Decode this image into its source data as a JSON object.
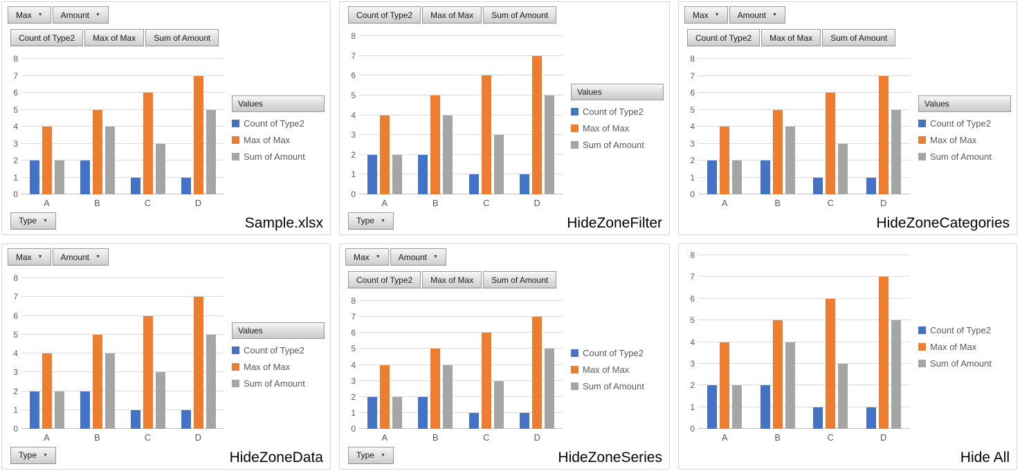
{
  "chart_data": {
    "type": "bar",
    "title": "",
    "categories": [
      "A",
      "B",
      "C",
      "D"
    ],
    "series": [
      {
        "name": "Count of Type2",
        "color": "#4472C4",
        "values": [
          2,
          2,
          1,
          1
        ]
      },
      {
        "name": "Max of Max",
        "color": "#ED7D31",
        "values": [
          4,
          5,
          6,
          7
        ]
      },
      {
        "name": "Sum of Amount",
        "color": "#A5A5A5",
        "values": [
          2,
          4,
          3,
          5
        ]
      }
    ],
    "ylim": [
      0,
      8
    ],
    "yticks": [
      0,
      1,
      2,
      3,
      4,
      5,
      6,
      7,
      8
    ],
    "grid": true,
    "legend_position": "right",
    "xlabel": "",
    "ylabel": ""
  },
  "pivot_controls": {
    "filter_buttons": [
      {
        "label": "Max"
      },
      {
        "label": "Amount"
      }
    ],
    "field_buttons": [
      "Count of Type2",
      "Max of Max",
      "Sum of Amount"
    ],
    "values_button": "Values",
    "axis_button": "Type"
  },
  "panels": [
    {
      "label": "Sample.xlsx",
      "show_filter": true,
      "show_fields": true,
      "show_values_header": true,
      "show_type_button": true
    },
    {
      "label": "HideZoneFilter",
      "show_filter": false,
      "show_fields": true,
      "show_values_header": true,
      "show_type_button": true
    },
    {
      "label": "HideZoneCategories",
      "show_filter": true,
      "show_fields": true,
      "show_values_header": true,
      "show_type_button": false
    },
    {
      "label": "HideZoneData",
      "show_filter": true,
      "show_fields": false,
      "show_values_header": true,
      "show_type_button": true
    },
    {
      "label": "HideZoneSeries",
      "show_filter": true,
      "show_fields": true,
      "show_values_header": false,
      "show_type_button": true
    },
    {
      "label": "Hide All",
      "show_filter": false,
      "show_fields": false,
      "show_values_header": false,
      "show_type_button": false
    }
  ],
  "ui_colors": {
    "axis_text": "#595959",
    "gridline": "#D9D9D9",
    "zero_line": "#BFBFBF",
    "panel_border": "#D5D5D5",
    "button_border": "#979797",
    "label_text": "#000000"
  }
}
